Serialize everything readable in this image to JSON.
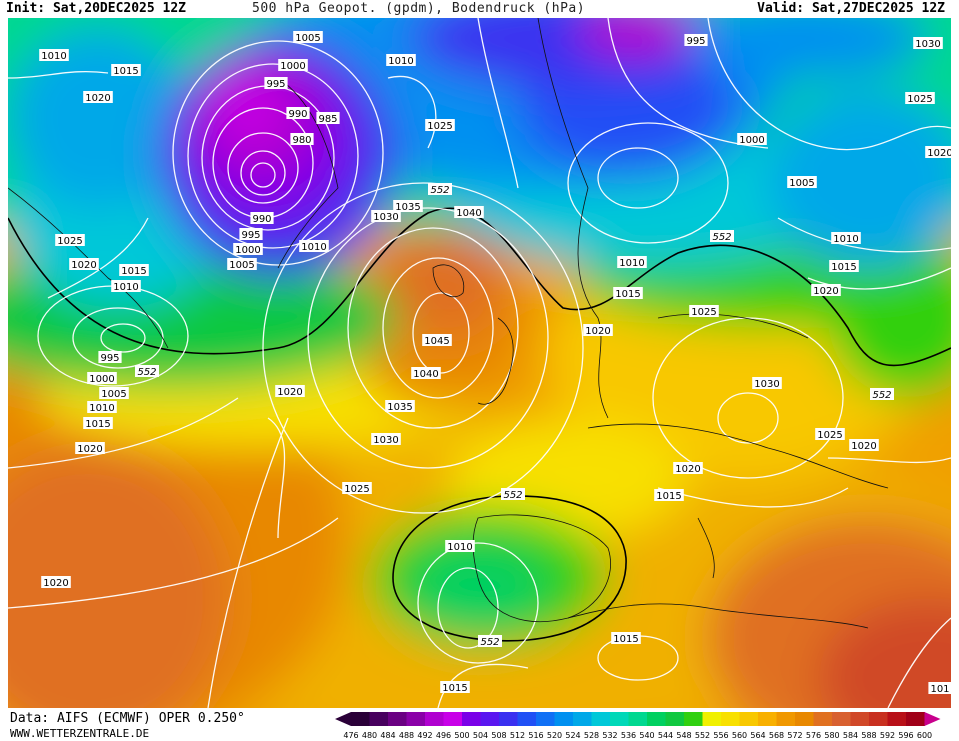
{
  "header": {
    "init": "Init: Sat,20DEC2025 12Z",
    "title": "500 hPa Geopot. (gpdm), Bodendruck (hPa)",
    "valid": "Valid: Sat,27DEC2025 12Z"
  },
  "footer": {
    "data_source": "Data: AIFS (ECMWF) OPER 0.250°",
    "website": "WWW.WETTERZENTRALE.DE"
  },
  "legend": {
    "levels": [
      "476",
      "480",
      "484",
      "488",
      "492",
      "496",
      "500",
      "504",
      "508",
      "512",
      "516",
      "520",
      "524",
      "528",
      "532",
      "536",
      "540",
      "544",
      "548",
      "552",
      "556",
      "560",
      "564",
      "568",
      "572",
      "576",
      "580",
      "584",
      "588",
      "592",
      "596",
      "600"
    ],
    "colors": [
      "#2a0038",
      "#47005e",
      "#6a0082",
      "#8a00a8",
      "#b000d0",
      "#c800e8",
      "#7a00e8",
      "#5a16f0",
      "#3a30f0",
      "#2050f5",
      "#1070f5",
      "#0090f0",
      "#00a8e8",
      "#00c8d8",
      "#00d8b8",
      "#00d890",
      "#00d060",
      "#10c840",
      "#30d010",
      "#f0f000",
      "#f8e000",
      "#f8c800",
      "#f8b000",
      "#f09800",
      "#e88800",
      "#e07020",
      "#d86030",
      "#d04828",
      "#c83020",
      "#b81018",
      "#a00018",
      "#c8008c"
    ]
  },
  "map": {
    "contour_552": "552",
    "pressure_labels": [
      {
        "id": "p1005a",
        "text": "1005"
      },
      {
        "id": "p1010a",
        "text": "1010"
      },
      {
        "id": "p1000a",
        "text": "1000"
      },
      {
        "id": "p1015a",
        "text": "1015"
      },
      {
        "id": "p995a",
        "text": "995"
      },
      {
        "id": "p1010b",
        "text": "1010"
      },
      {
        "id": "p1020a",
        "text": "1020"
      },
      {
        "id": "p990a",
        "text": "990"
      },
      {
        "id": "p985a",
        "text": "985"
      },
      {
        "id": "p980a",
        "text": "980"
      },
      {
        "id": "p1025a",
        "text": "1025"
      },
      {
        "id": "p990b",
        "text": "990"
      },
      {
        "id": "p995b",
        "text": "995"
      },
      {
        "id": "p1000b",
        "text": "1000"
      },
      {
        "id": "p1005b",
        "text": "1005"
      },
      {
        "id": "p1010c",
        "text": "1010"
      },
      {
        "id": "p1030a",
        "text": "1030"
      },
      {
        "id": "p1035a",
        "text": "1035"
      },
      {
        "id": "p1040a",
        "text": "1040"
      },
      {
        "id": "p1025b",
        "text": "1025"
      },
      {
        "id": "p1020b",
        "text": "1020"
      },
      {
        "id": "p1015b",
        "text": "1015"
      },
      {
        "id": "p1010d",
        "text": "1010"
      },
      {
        "id": "p995c",
        "text": "995"
      },
      {
        "id": "p1000c",
        "text": "1000"
      },
      {
        "id": "p1005c",
        "text": "1005"
      },
      {
        "id": "p1010e",
        "text": "1010"
      },
      {
        "id": "p1015c",
        "text": "1015"
      },
      {
        "id": "p1020c",
        "text": "1020"
      },
      {
        "id": "p1045",
        "text": "1045"
      },
      {
        "id": "p1040b",
        "text": "1040"
      },
      {
        "id": "p1035b",
        "text": "1035"
      },
      {
        "id": "p1030b",
        "text": "1030"
      },
      {
        "id": "p1025c",
        "text": "1025"
      },
      {
        "id": "p1020d",
        "text": "1020"
      },
      {
        "id": "p995d",
        "text": "995"
      },
      {
        "id": "p1030c",
        "text": "1030"
      },
      {
        "id": "p1025d",
        "text": "1025"
      },
      {
        "id": "p1000d",
        "text": "1000"
      },
      {
        "id": "p1005d",
        "text": "1005"
      },
      {
        "id": "p1020e",
        "text": "1020"
      },
      {
        "id": "p1010f",
        "text": "1010"
      },
      {
        "id": "p1015d",
        "text": "1015"
      },
      {
        "id": "p1020f",
        "text": "1020"
      },
      {
        "id": "p1010g",
        "text": "1010"
      },
      {
        "id": "p1015e",
        "text": "1015"
      },
      {
        "id": "p1020g",
        "text": "1020"
      },
      {
        "id": "p1025e",
        "text": "1025"
      },
      {
        "id": "p1030d",
        "text": "1030"
      },
      {
        "id": "p1025f",
        "text": "1025"
      },
      {
        "id": "p1020h",
        "text": "1020"
      },
      {
        "id": "p1020i",
        "text": "1020"
      },
      {
        "id": "p1015f",
        "text": "1015"
      },
      {
        "id": "p1010h",
        "text": "1010"
      },
      {
        "id": "p1015g",
        "text": "1015"
      },
      {
        "id": "p1020j",
        "text": "1020"
      },
      {
        "id": "p1015h",
        "text": "1015"
      },
      {
        "id": "p101x",
        "text": "101"
      }
    ]
  }
}
